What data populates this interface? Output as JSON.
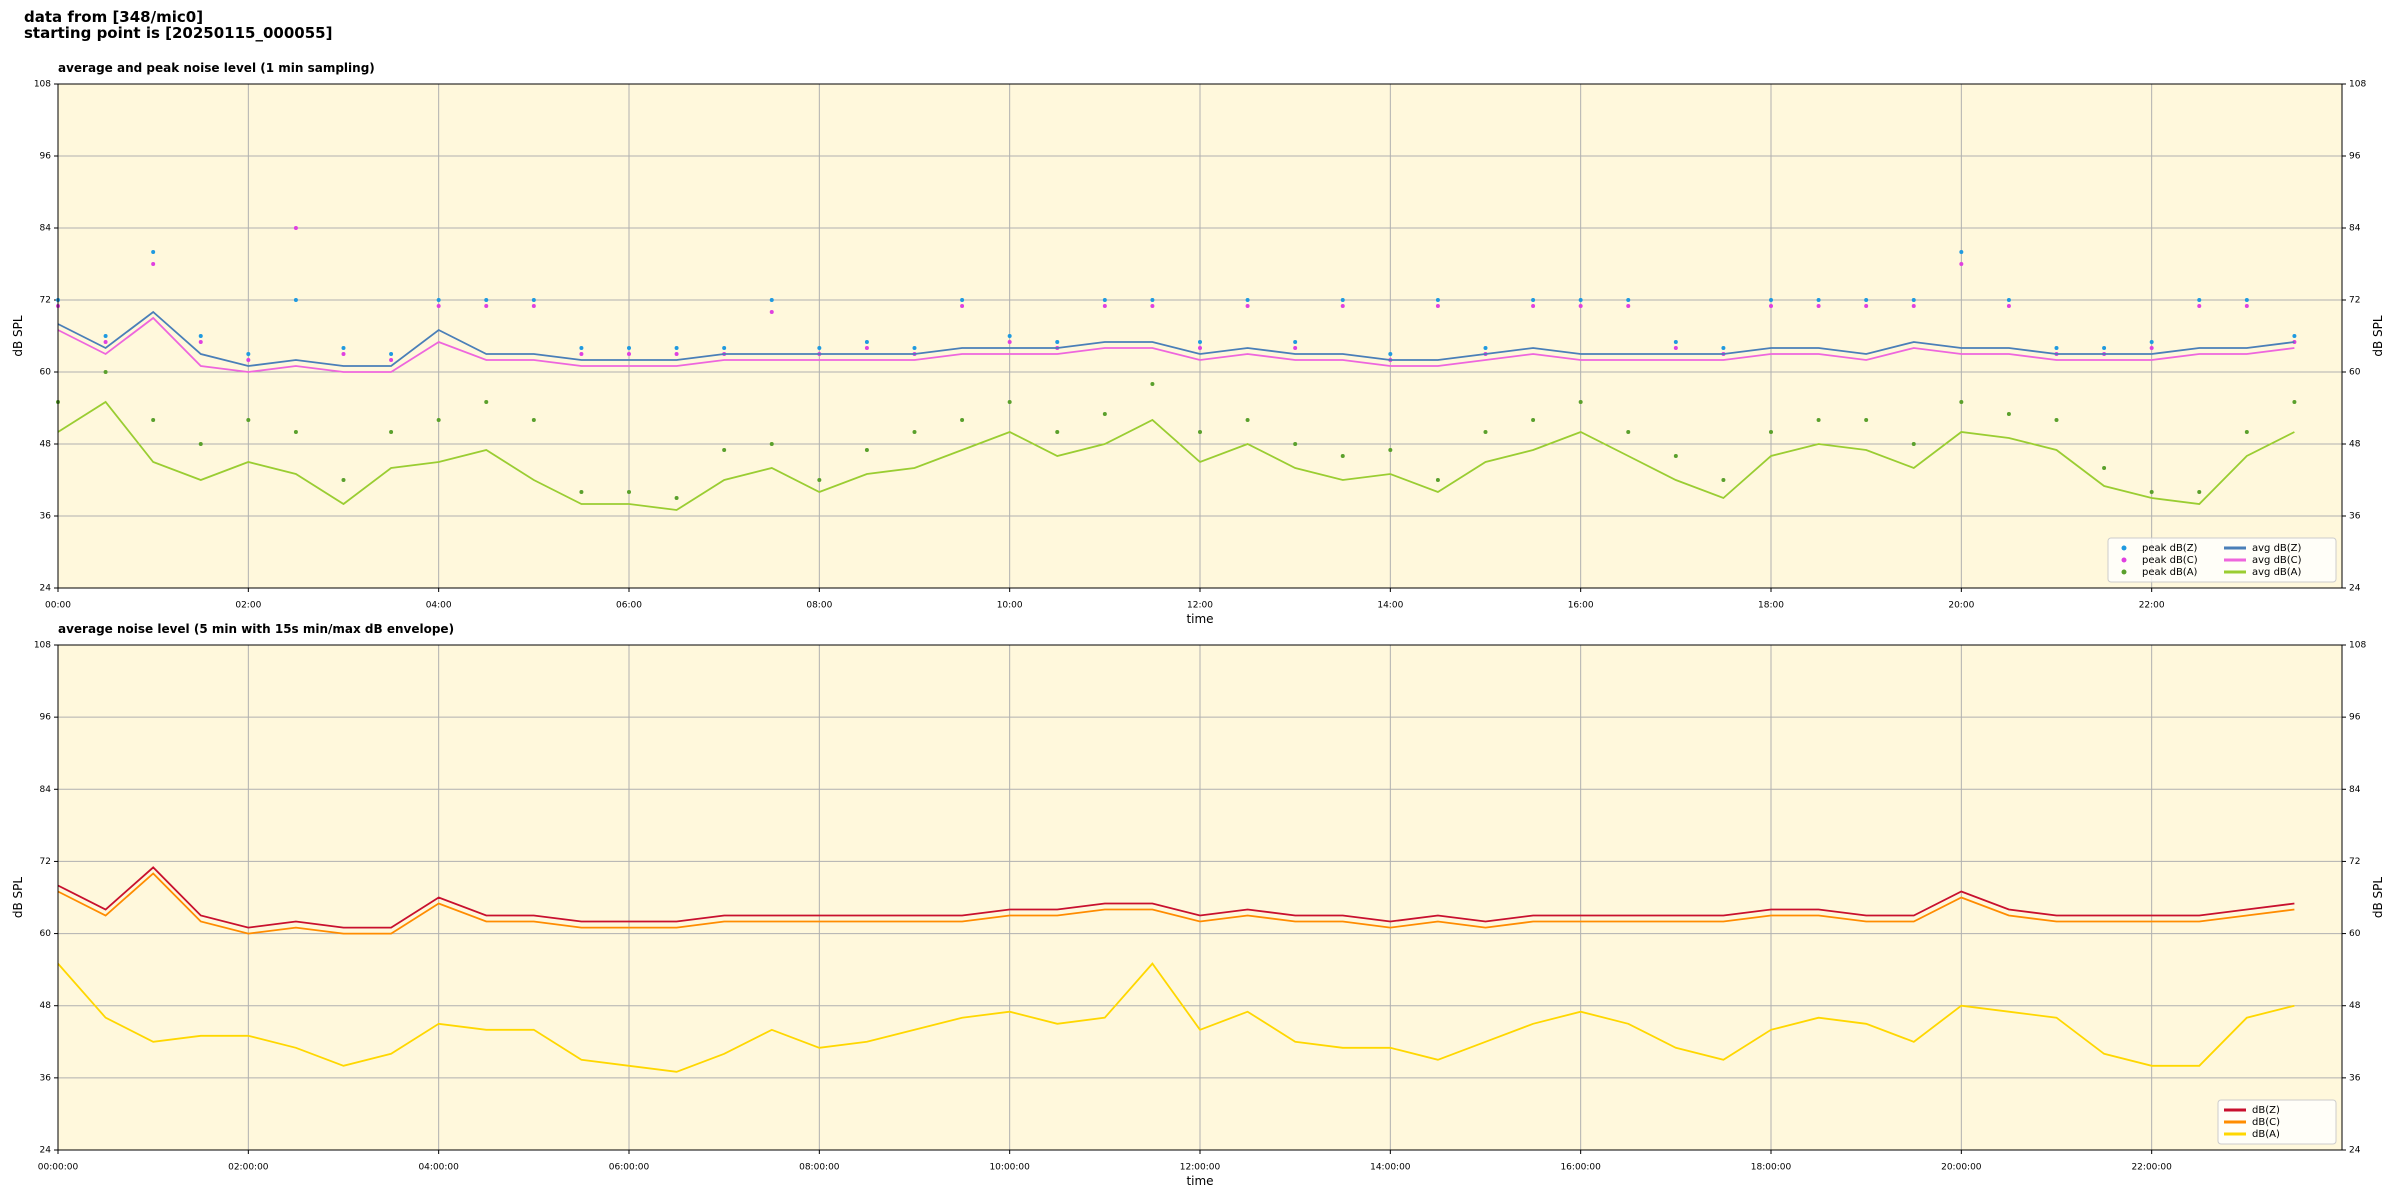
{
  "header": {
    "lines": [
      "data from [348/mic0]",
      "starting point is [20250115_000055]"
    ]
  },
  "chart_data": [
    {
      "type": "line",
      "title": "average and peak noise level (1 min sampling)",
      "x_label": "time",
      "y_label": "dB SPL",
      "x": [
        "00:00",
        "00:30",
        "01:00",
        "01:30",
        "02:00",
        "02:30",
        "03:00",
        "03:30",
        "04:00",
        "04:30",
        "05:00",
        "05:30",
        "06:00",
        "06:30",
        "07:00",
        "07:30",
        "08:00",
        "08:30",
        "09:00",
        "09:30",
        "10:00",
        "10:30",
        "11:00",
        "11:30",
        "12:00",
        "12:30",
        "13:00",
        "13:30",
        "14:00",
        "14:30",
        "15:00",
        "15:30",
        "16:00",
        "16:30",
        "17:00",
        "17:30",
        "18:00",
        "18:30",
        "19:00",
        "19:30",
        "20:00",
        "20:30",
        "21:00",
        "21:30",
        "22:00",
        "22:30",
        "23:00",
        "23:30"
      ],
      "xlim": [
        "00:00",
        "24:00"
      ],
      "xticks": [
        "00:00",
        "02:00",
        "04:00",
        "06:00",
        "08:00",
        "10:00",
        "12:00",
        "14:00",
        "16:00",
        "18:00",
        "20:00",
        "22:00"
      ],
      "ylim": [
        24,
        108
      ],
      "yticks": [
        24,
        36,
        48,
        60,
        72,
        84,
        96,
        108
      ],
      "grid": true,
      "legend": "lower right",
      "legend_columns": 2,
      "background": "#fff8dc",
      "series": [
        {
          "name": "peak dB(Z)",
          "style": "scatter",
          "color": "#1f9ae0",
          "values": [
            72,
            66,
            80,
            66,
            63,
            72,
            64,
            63,
            72,
            72,
            72,
            64,
            64,
            64,
            64,
            72,
            64,
            65,
            64,
            72,
            66,
            65,
            72,
            72,
            65,
            72,
            65,
            72,
            63,
            72,
            64,
            72,
            72,
            72,
            65,
            64,
            72,
            72,
            72,
            72,
            80,
            72,
            64,
            64,
            65,
            72,
            72,
            66
          ]
        },
        {
          "name": "peak dB(C)",
          "style": "scatter",
          "color": "#e040e0",
          "values": [
            71,
            65,
            78,
            65,
            62,
            84,
            63,
            62,
            71,
            71,
            71,
            63,
            63,
            63,
            63,
            70,
            63,
            64,
            63,
            71,
            65,
            64,
            71,
            71,
            64,
            71,
            64,
            71,
            62,
            71,
            63,
            71,
            71,
            71,
            64,
            63,
            71,
            71,
            71,
            71,
            78,
            71,
            63,
            63,
            64,
            71,
            71,
            65
          ]
        },
        {
          "name": "peak dB(A)",
          "style": "scatter",
          "color": "#5aa02c",
          "values": [
            55,
            60,
            52,
            48,
            52,
            50,
            42,
            50,
            52,
            55,
            52,
            40,
            40,
            39,
            47,
            48,
            42,
            47,
            50,
            52,
            55,
            50,
            53,
            58,
            50,
            52,
            48,
            46,
            47,
            42,
            50,
            52,
            55,
            50,
            46,
            42,
            50,
            52,
            52,
            48,
            55,
            53,
            52,
            44,
            40,
            40,
            50,
            55
          ]
        },
        {
          "name": "avg dB(Z)",
          "style": "line",
          "color": "#4a7fb8",
          "values": [
            68,
            64,
            70,
            63,
            61,
            62,
            61,
            61,
            67,
            63,
            63,
            62,
            62,
            62,
            63,
            63,
            63,
            63,
            63,
            64,
            64,
            64,
            65,
            65,
            63,
            64,
            63,
            63,
            62,
            62,
            63,
            64,
            63,
            63,
            63,
            63,
            64,
            64,
            63,
            65,
            64,
            64,
            63,
            63,
            63,
            64,
            64,
            65
          ]
        },
        {
          "name": "avg dB(C)",
          "style": "line",
          "color": "#ee66dd",
          "values": [
            67,
            63,
            69,
            61,
            60,
            61,
            60,
            60,
            65,
            62,
            62,
            61,
            61,
            61,
            62,
            62,
            62,
            62,
            62,
            63,
            63,
            63,
            64,
            64,
            62,
            63,
            62,
            62,
            61,
            61,
            62,
            63,
            62,
            62,
            62,
            62,
            63,
            63,
            62,
            64,
            63,
            63,
            62,
            62,
            62,
            63,
            63,
            64
          ]
        },
        {
          "name": "avg dB(A)",
          "style": "line",
          "color": "#9acd32",
          "values": [
            50,
            55,
            45,
            42,
            45,
            43,
            38,
            44,
            45,
            47,
            42,
            38,
            38,
            37,
            42,
            44,
            40,
            43,
            44,
            47,
            50,
            46,
            48,
            52,
            45,
            48,
            44,
            42,
            43,
            40,
            45,
            47,
            50,
            46,
            42,
            39,
            46,
            48,
            47,
            44,
            50,
            49,
            47,
            41,
            39,
            38,
            46,
            50
          ]
        }
      ]
    },
    {
      "type": "line",
      "title": "average noise level (5 min with 15s min/max dB envelope)",
      "x_label": "time",
      "y_label": "dB SPL",
      "x": [
        "00:00:00",
        "00:30:00",
        "01:00:00",
        "01:30:00",
        "02:00:00",
        "02:30:00",
        "03:00:00",
        "03:30:00",
        "04:00:00",
        "04:30:00",
        "05:00:00",
        "05:30:00",
        "06:00:00",
        "06:30:00",
        "07:00:00",
        "07:30:00",
        "08:00:00",
        "08:30:00",
        "09:00:00",
        "09:30:00",
        "10:00:00",
        "10:30:00",
        "11:00:00",
        "11:30:00",
        "12:00:00",
        "12:30:00",
        "13:00:00",
        "13:30:00",
        "14:00:00",
        "14:30:00",
        "15:00:00",
        "15:30:00",
        "16:00:00",
        "16:30:00",
        "17:00:00",
        "17:30:00",
        "18:00:00",
        "18:30:00",
        "19:00:00",
        "19:30:00",
        "20:00:00",
        "20:30:00",
        "21:00:00",
        "21:30:00",
        "22:00:00",
        "22:30:00",
        "23:00:00",
        "23:30:00"
      ],
      "xlim": [
        "00:00:00",
        "24:00:00"
      ],
      "xticks": [
        "00:00:00",
        "02:00:00",
        "04:00:00",
        "06:00:00",
        "08:00:00",
        "10:00:00",
        "12:00:00",
        "14:00:00",
        "16:00:00",
        "18:00:00",
        "20:00:00",
        "22:00:00"
      ],
      "ylim": [
        24,
        108
      ],
      "yticks": [
        24,
        36,
        48,
        60,
        72,
        84,
        96,
        108
      ],
      "grid": true,
      "legend": "lower right",
      "legend_columns": 1,
      "background": "#fff8dc",
      "series": [
        {
          "name": "dB(Z)",
          "style": "line",
          "color": "#c8102e",
          "values": [
            68,
            64,
            71,
            63,
            61,
            62,
            61,
            61,
            66,
            63,
            63,
            62,
            62,
            62,
            63,
            63,
            63,
            63,
            63,
            63,
            64,
            64,
            65,
            65,
            63,
            64,
            63,
            63,
            62,
            63,
            62,
            63,
            63,
            63,
            63,
            63,
            64,
            64,
            63,
            63,
            67,
            64,
            63,
            63,
            63,
            63,
            64,
            65
          ]
        },
        {
          "name": "dB(C)",
          "style": "line",
          "color": "#ff8c00",
          "values": [
            67,
            63,
            70,
            62,
            60,
            61,
            60,
            60,
            65,
            62,
            62,
            61,
            61,
            61,
            62,
            62,
            62,
            62,
            62,
            62,
            63,
            63,
            64,
            64,
            62,
            63,
            62,
            62,
            61,
            62,
            61,
            62,
            62,
            62,
            62,
            62,
            63,
            63,
            62,
            62,
            66,
            63,
            62,
            62,
            62,
            62,
            63,
            64
          ]
        },
        {
          "name": "dB(A)",
          "style": "line",
          "color": "#ffd700",
          "values": [
            55,
            46,
            42,
            43,
            43,
            41,
            38,
            40,
            45,
            44,
            44,
            39,
            38,
            37,
            40,
            44,
            41,
            42,
            44,
            46,
            47,
            45,
            46,
            55,
            44,
            47,
            42,
            41,
            41,
            39,
            42,
            45,
            47,
            45,
            41,
            39,
            44,
            46,
            45,
            42,
            48,
            47,
            46,
            40,
            38,
            38,
            46,
            48
          ]
        }
      ]
    }
  ]
}
